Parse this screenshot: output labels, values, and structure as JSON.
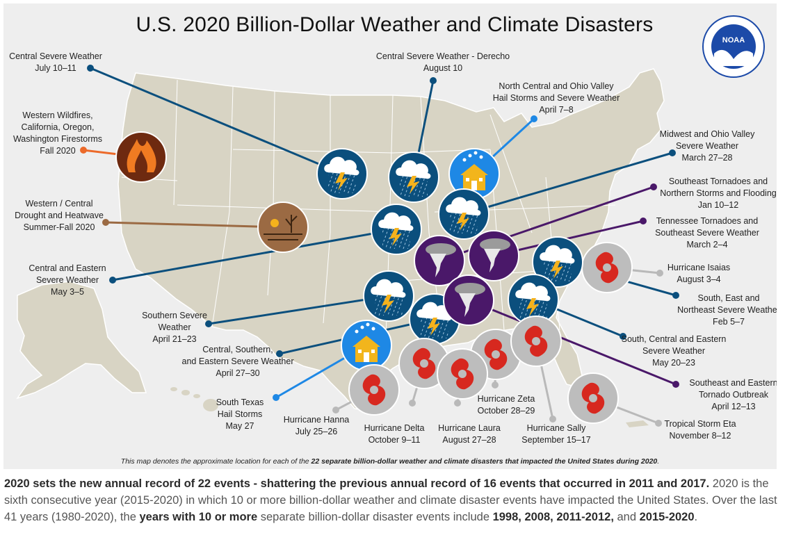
{
  "title": "U.S. 2020 Billion-Dollar Weather and Climate Disasters",
  "logo_text": "NOAA",
  "colors": {
    "severe": "#0b4f7d",
    "hail": "#1e88e5",
    "tornado": "#4a1869",
    "hurricane": "#b9b9b9",
    "wildfire": "#ec6a2a",
    "drought": "#9b6a43",
    "land": "#d8d4c4",
    "water": "#eeeeee"
  },
  "events": [
    {
      "id": "central-severe-weather-jul",
      "type": "severe",
      "lines": [
        "Central Severe Weather",
        "July 10–11"
      ]
    },
    {
      "id": "derecho",
      "type": "severe",
      "lines": [
        "Central Severe Weather - Derecho",
        "August 10"
      ]
    },
    {
      "id": "north-central-ohio-hail",
      "type": "hail",
      "lines": [
        "North Central and Ohio Valley",
        "Hail Storms and Severe Weather",
        "April 7–8"
      ]
    },
    {
      "id": "western-wildfires",
      "type": "wildfire",
      "lines": [
        "Western Wildfires,",
        "California, Oregon,",
        "Washington Firestorms",
        "Fall 2020"
      ]
    },
    {
      "id": "midwest-ohio-severe",
      "type": "severe",
      "lines": [
        "Midwest and Ohio Valley",
        "Severe Weather",
        "March 27–28"
      ]
    },
    {
      "id": "southeast-tornadoes-jan",
      "type": "tornado",
      "lines": [
        "Southeast Tornadoes and",
        "Northern Storms and Flooding",
        "Jan 10–12"
      ]
    },
    {
      "id": "drought",
      "type": "drought",
      "lines": [
        "Western / Central",
        "Drought and Heatwave",
        "Summer-Fall 2020"
      ]
    },
    {
      "id": "tennessee-tornadoes",
      "type": "tornado",
      "lines": [
        "Tennessee Tornadoes and",
        "Southeast Severe Weather",
        "March 2–4"
      ]
    },
    {
      "id": "central-eastern-severe",
      "type": "severe",
      "lines": [
        "Central and Eastern",
        "Severe Weather",
        "May 3–5"
      ]
    },
    {
      "id": "isaias",
      "type": "hurricane",
      "lines": [
        "Hurricane Isaias",
        "August 3–4"
      ]
    },
    {
      "id": "south-east-northeast",
      "type": "severe",
      "lines": [
        "South, East and",
        "Northeast Severe Weather",
        "Feb 5–7"
      ]
    },
    {
      "id": "southern-severe",
      "type": "severe",
      "lines": [
        "Southern Severe",
        "Weather",
        "April 21–23"
      ]
    },
    {
      "id": "south-central-eastern",
      "type": "severe",
      "lines": [
        "South, Central and Eastern",
        "Severe Weather",
        "May 20–23"
      ]
    },
    {
      "id": "central-southern-eastern",
      "type": "severe",
      "lines": [
        "Central, Southern,",
        "and Eastern Severe Weather",
        "April 27–30"
      ]
    },
    {
      "id": "southeast-eastern-tornado",
      "type": "tornado",
      "lines": [
        "Southeast and Eastern",
        "Tornado Outbreak",
        "April 12–13"
      ]
    },
    {
      "id": "south-texas-hail",
      "type": "hail",
      "lines": [
        "South Texas",
        "Hail Storms",
        "May 27"
      ]
    },
    {
      "id": "zeta",
      "type": "hurricane",
      "lines": [
        "Hurricane Zeta",
        "October 28–29"
      ]
    },
    {
      "id": "hanna",
      "type": "hurricane",
      "lines": [
        "Hurricane Hanna",
        "July 25–26"
      ]
    },
    {
      "id": "delta",
      "type": "hurricane",
      "lines": [
        "Hurricane Delta",
        "October 9–11"
      ]
    },
    {
      "id": "laura",
      "type": "hurricane",
      "lines": [
        "Hurricane Laura",
        "August 27–28"
      ]
    },
    {
      "id": "sally",
      "type": "hurricane",
      "lines": [
        "Hurricane Sally",
        "September 15–17"
      ]
    },
    {
      "id": "eta",
      "type": "hurricane",
      "lines": [
        "Tropical Storm Eta",
        "November 8–12"
      ]
    }
  ],
  "caption": {
    "pre": "This map denotes the approximate location for each of the ",
    "bold": "22 separate billion-dollar weather and climate disasters that impacted the United States during 2020",
    "post": "."
  },
  "paragraph": {
    "s1": "2020 sets the new annual record of 22 events - shattering the previous annual record of 16 events that occurred in 2011 and 2017",
    "s1_end": ".",
    "s2": " 2020 is the sixth consecutive year (2015-2020) in which 10 or more billion-dollar weather and climate disaster events have impacted the United States. Over the last 41 years (1980-2020), the ",
    "s2_bold": "years with 10 or more",
    "s3": " separate billion-dollar disaster events include ",
    "y1": "1998, 2008, 2011-2012,",
    "s4": " and ",
    "y2": "2015-2020",
    "s5": "."
  }
}
